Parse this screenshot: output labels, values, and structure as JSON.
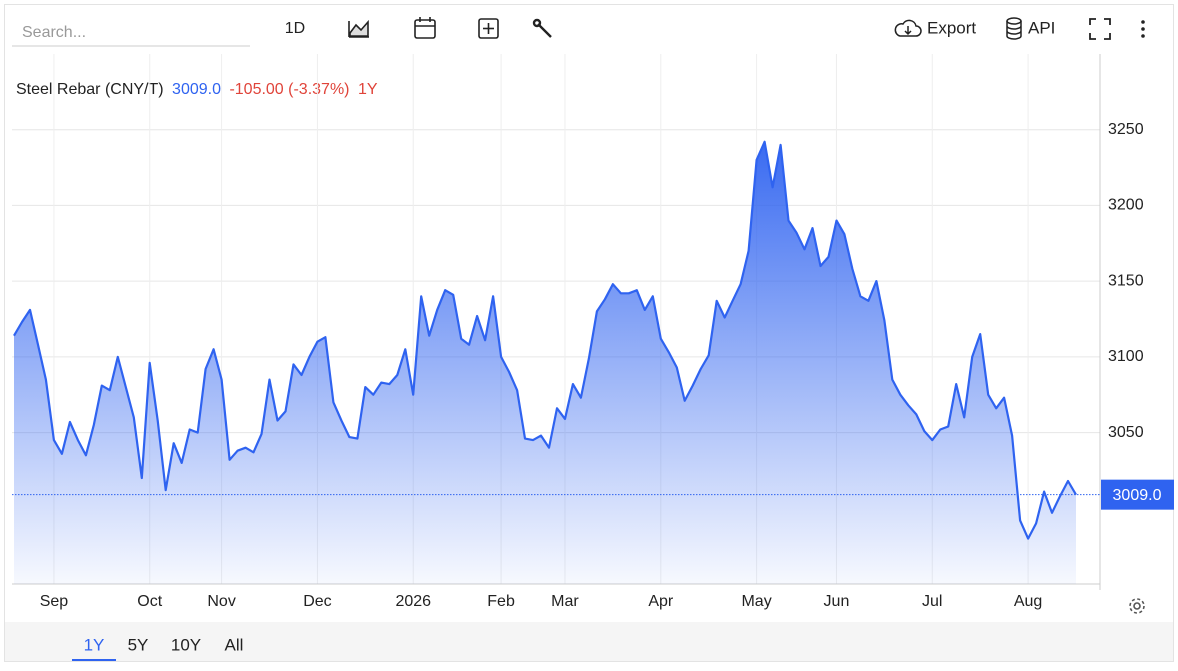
{
  "toolbar": {
    "search_placeholder": "Search...",
    "interval": "1D",
    "export": "Export",
    "api": "API"
  },
  "chart_data": {
    "type": "area",
    "title": "Steel Rebar (CNY/T)",
    "last_price": "3009.0",
    "change": "-105.00 (-3.37%)",
    "range": "1Y",
    "color": "#2f63f0",
    "categories": [
      null,
      null,
      null,
      null,
      null,
      "Sep",
      null,
      null,
      null,
      null,
      null,
      null,
      null,
      null,
      null,
      null,
      null,
      "Oct",
      null,
      null,
      null,
      null,
      null,
      null,
      null,
      null,
      "Nov",
      null,
      null,
      null,
      null,
      null,
      null,
      null,
      null,
      null,
      null,
      null,
      "Dec",
      null,
      null,
      null,
      null,
      null,
      null,
      null,
      null,
      null,
      null,
      null,
      "2026",
      null,
      null,
      null,
      null,
      null,
      null,
      null,
      null,
      null,
      null,
      "Feb",
      null,
      null,
      null,
      null,
      null,
      null,
      null,
      "Mar",
      null,
      null,
      null,
      null,
      null,
      null,
      null,
      null,
      null,
      null,
      null,
      "Apr",
      null,
      null,
      null,
      null,
      null,
      null,
      null,
      null,
      null,
      null,
      null,
      "May",
      null,
      null,
      null,
      null,
      null,
      null,
      null,
      null,
      null,
      "Jun",
      null,
      null,
      null,
      null,
      null,
      null,
      null,
      null,
      null,
      null,
      null,
      "Jul",
      null,
      null,
      null,
      null,
      null,
      null,
      null,
      null,
      null,
      null,
      null,
      "Aug",
      null,
      null,
      null,
      null,
      null,
      null
    ],
    "values": [
      3114,
      3123,
      3131,
      3108,
      3085,
      3045,
      3036,
      3057,
      3045,
      3035,
      3055,
      3081,
      3078,
      3100,
      3080,
      3060,
      3020,
      3096,
      3058,
      3012,
      3043,
      3030,
      3052,
      3050,
      3092,
      3105,
      3085,
      3032,
      3038,
      3040,
      3037,
      3049,
      3085,
      3058,
      3064,
      3095,
      3088,
      3100,
      3110,
      3113,
      3070,
      3058,
      3047,
      3046,
      3080,
      3075,
      3083,
      3082,
      3088,
      3105,
      3075,
      3140,
      3114,
      3131,
      3144,
      3141,
      3112,
      3108,
      3127,
      3111,
      3140,
      3100,
      3090,
      3078,
      3046,
      3045,
      3048,
      3040,
      3066,
      3059,
      3082,
      3073,
      3099,
      3130,
      3138,
      3148,
      3142,
      3142,
      3144,
      3131,
      3140,
      3112,
      3103,
      3093,
      3071,
      3081,
      3092,
      3101,
      3137,
      3126,
      3137,
      3148,
      3170,
      3230,
      3242,
      3212,
      3240,
      3190,
      3182,
      3171,
      3185,
      3160,
      3166,
      3190,
      3181,
      3158,
      3140,
      3137,
      3150,
      3124,
      3085,
      3075,
      3068,
      3062,
      3051,
      3045,
      3052,
      3054,
      3082,
      3060,
      3100,
      3115,
      3075,
      3066,
      3073,
      3048,
      2992,
      2980,
      2990,
      3011,
      2997,
      3008,
      3018,
      3009
    ],
    "ylim": [
      2950,
      3300
    ],
    "yticks": [
      3050,
      3100,
      3150,
      3200,
      3250
    ],
    "grid": true
  },
  "range_tabs": [
    "1Y",
    "5Y",
    "10Y",
    "All"
  ]
}
